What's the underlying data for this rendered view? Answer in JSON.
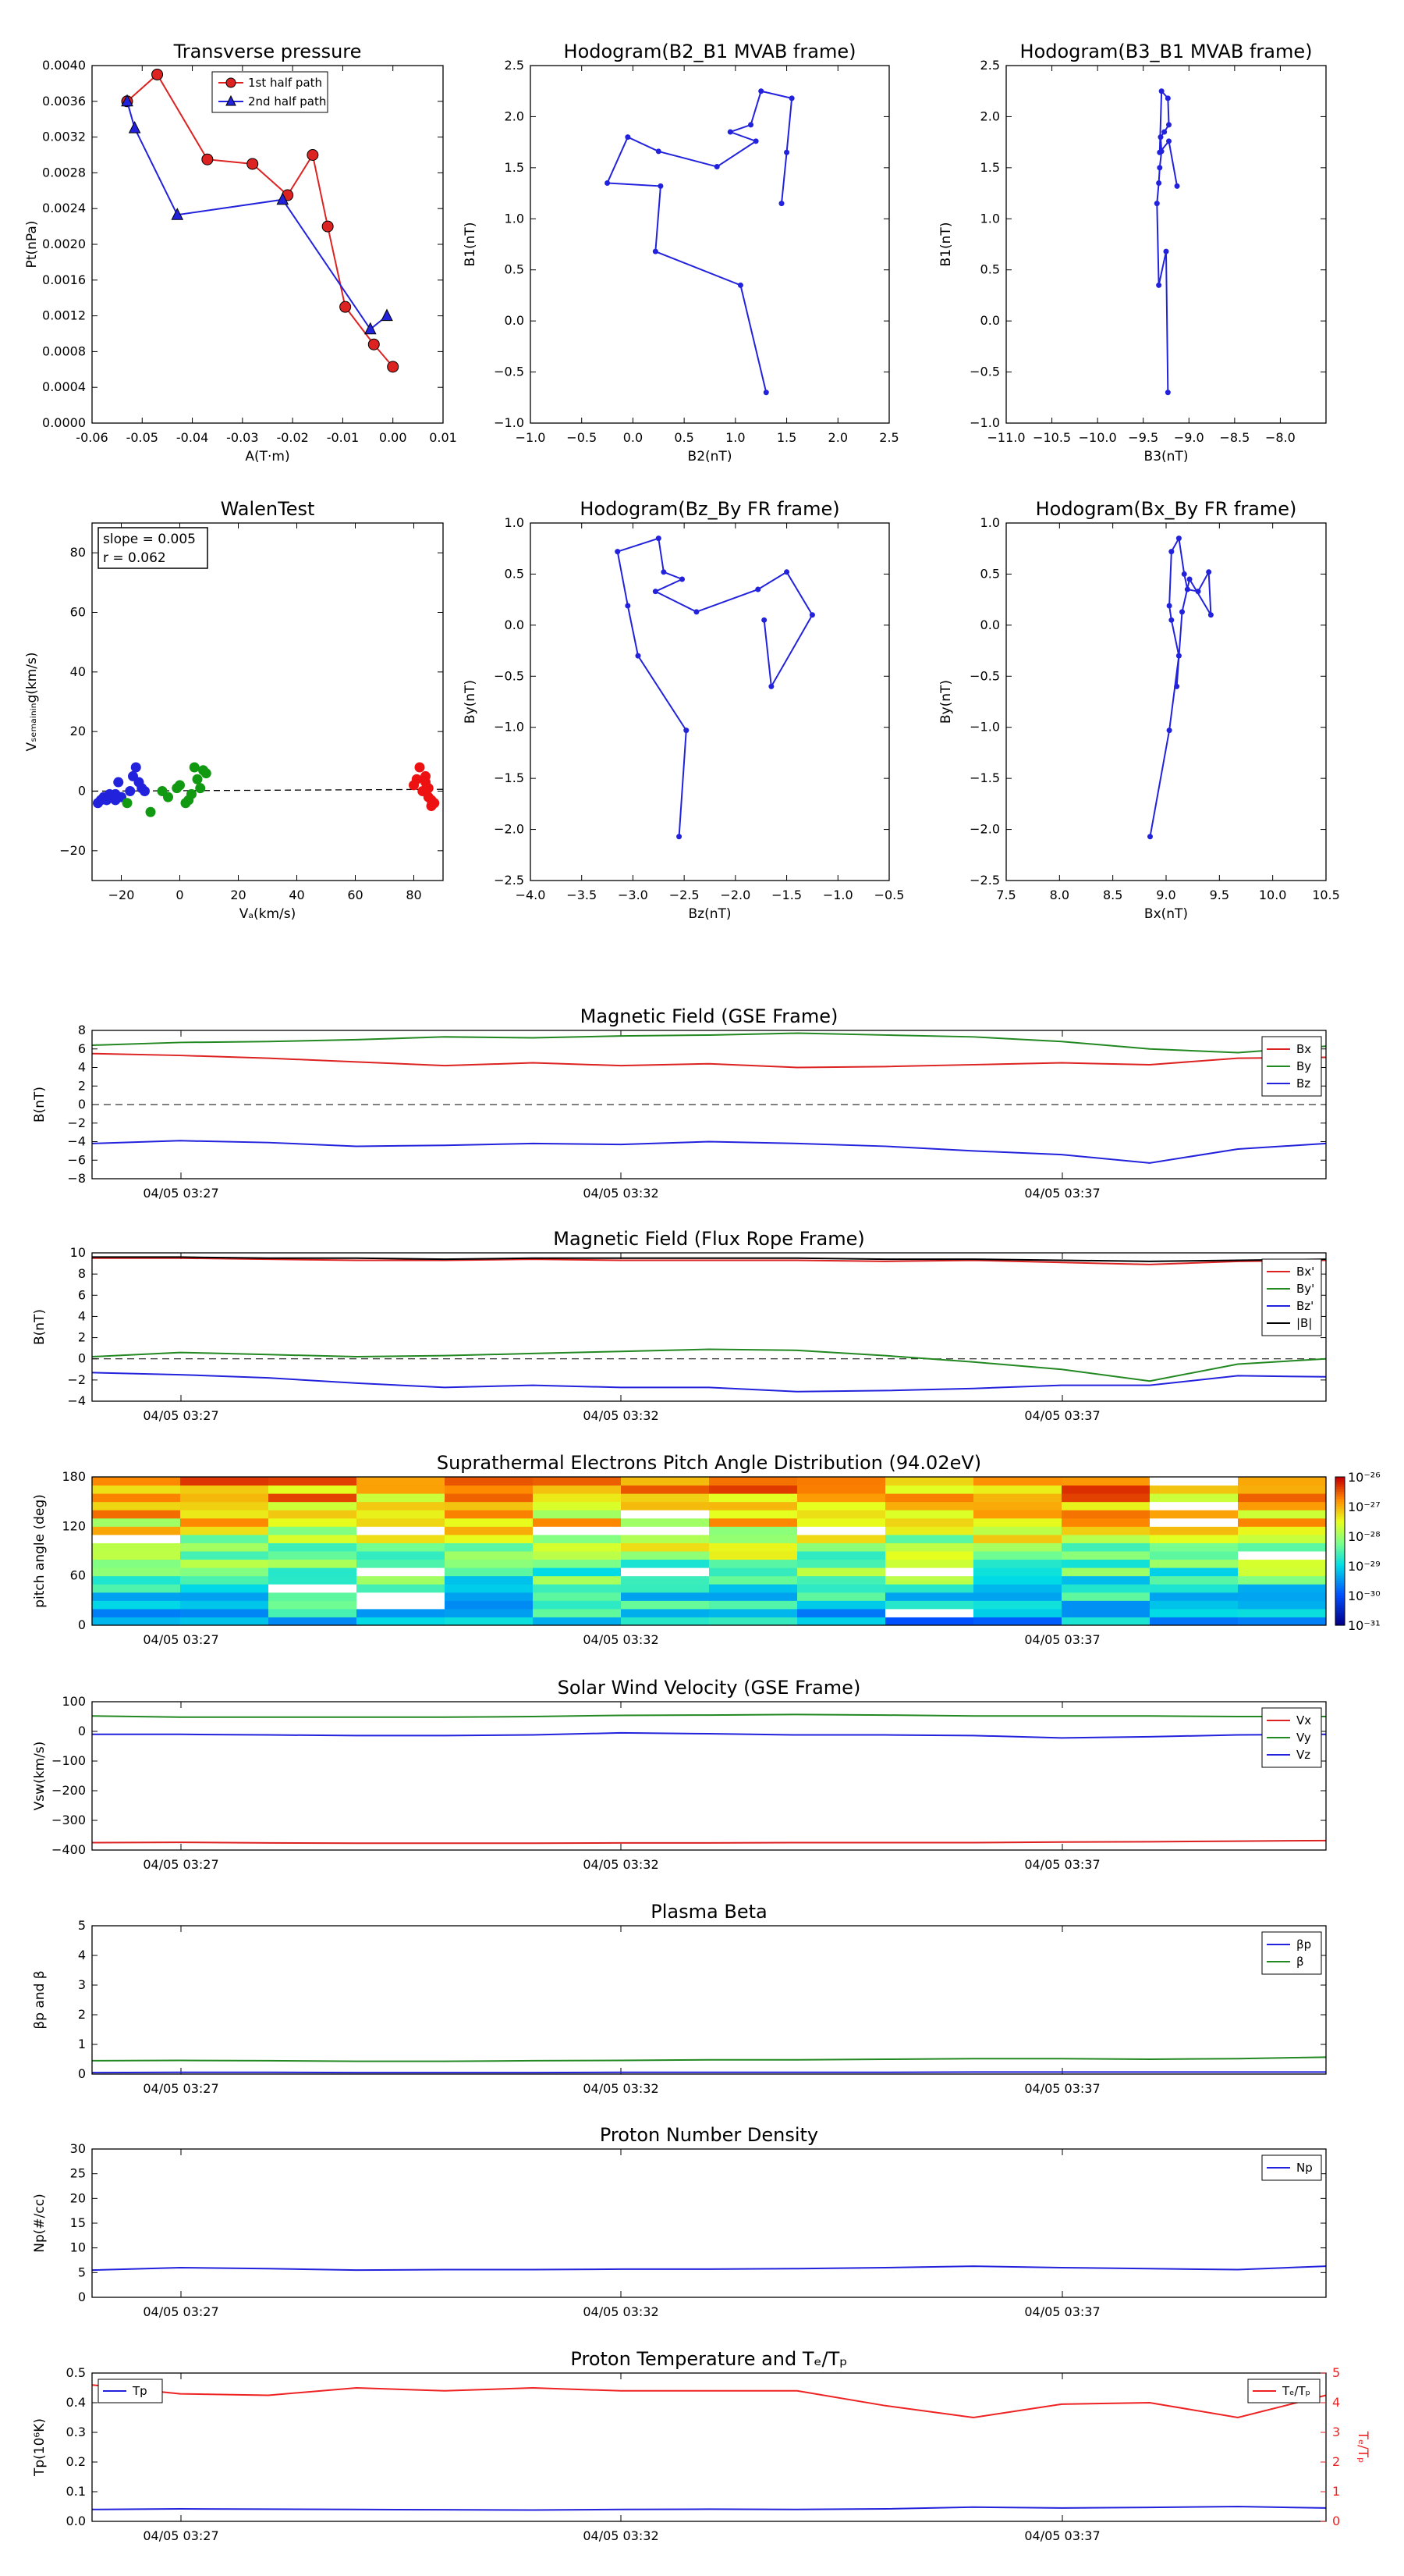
{
  "charts": [
    {
      "id": "pt",
      "type": "line",
      "title": "Transverse pressure",
      "xlabel": "A(T·m)",
      "ylabel": "Pt(nPa)",
      "xlim": [
        -0.06,
        0.01
      ],
      "ylim": [
        0,
        0.004
      ],
      "xticks": [
        "-0.06",
        "-0.05",
        "-0.04",
        "-0.03",
        "-0.02",
        "-0.01",
        "0.00",
        "0.01"
      ],
      "yticks": [
        "0.0000",
        "0.0004",
        "0.0008",
        "0.0012",
        "0.0016",
        "0.0020",
        "0.0024",
        "0.0028",
        "0.0032",
        "0.0036",
        "0.0040"
      ],
      "legend": [
        "1st half path",
        "2nd half path"
      ],
      "series": [
        {
          "name": "1st half path",
          "color": "#dd2222",
          "marker": "circle",
          "x": [
            -0.053,
            -0.047,
            -0.037,
            -0.028,
            -0.021,
            -0.016,
            -0.013,
            -0.0095,
            -0.0038,
            0.0
          ],
          "y": [
            0.0036,
            0.0039,
            0.00295,
            0.0029,
            0.00255,
            0.003,
            0.0022,
            0.0013,
            0.00088,
            0.00063
          ]
        },
        {
          "name": "2nd half path",
          "color": "#2222dd",
          "marker": "triangle",
          "x": [
            -0.053,
            -0.0515,
            -0.043,
            -0.022,
            -0.0045,
            -0.0012
          ],
          "y": [
            0.0036,
            0.0033,
            0.00233,
            0.0025,
            0.00105,
            0.0012
          ]
        }
      ]
    },
    {
      "id": "h1",
      "type": "line",
      "title": "Hodogram(B2_B1 MVAB frame)",
      "xlabel": "B2(nT)",
      "ylabel": "B1(nT)",
      "xlim": [
        -1.0,
        2.5
      ],
      "ylim": [
        -1.0,
        2.5
      ],
      "xticks": [
        "−1.0",
        "−0.5",
        "0.0",
        "0.5",
        "1.0",
        "1.5",
        "2.0",
        "2.5"
      ],
      "yticks": [
        "−1.0",
        "−0.5",
        "0.0",
        "0.5",
        "1.0",
        "1.5",
        "2.0",
        "2.5"
      ],
      "series": [
        {
          "color": "#2222dd",
          "marker": "dot",
          "x": [
            1.3,
            1.05,
            0.22,
            0.27,
            -0.25,
            -0.05,
            0.25,
            0.82,
            1.2,
            0.95,
            1.15,
            1.25,
            1.55,
            1.5,
            1.45
          ],
          "y": [
            -0.7,
            0.35,
            0.68,
            1.32,
            1.35,
            1.8,
            1.66,
            1.51,
            1.76,
            1.85,
            1.92,
            2.25,
            2.18,
            1.65,
            1.15
          ]
        }
      ]
    },
    {
      "id": "h2",
      "type": "line",
      "title": "Hodogram(B3_B1 MVAB frame)",
      "xlabel": "B3(nT)",
      "ylabel": "B1(nT)",
      "xlim": [
        -11.0,
        -7.5
      ],
      "ylim": [
        -1.0,
        2.5
      ],
      "xticks": [
        "−11.0",
        "−10.5",
        "−10.0",
        "−9.5",
        "−9.0",
        "−8.5",
        "−8.0"
      ],
      "yticks": [
        "−1.0",
        "−0.5",
        "0.0",
        "0.5",
        "1.0",
        "1.5",
        "2.0",
        "2.5"
      ],
      "series": [
        {
          "color": "#2222dd",
          "marker": "dot",
          "x": [
            -9.23,
            -9.25,
            -9.33,
            -9.35,
            -9.33,
            -9.32,
            -9.3,
            -9.31,
            -9.27,
            -9.22,
            -9.23,
            -9.3,
            -9.32,
            -9.22,
            -9.13
          ],
          "y": [
            -0.7,
            0.68,
            0.35,
            1.15,
            1.35,
            1.5,
            1.66,
            1.8,
            1.85,
            1.92,
            2.18,
            2.25,
            1.65,
            1.76,
            1.32
          ]
        }
      ]
    },
    {
      "id": "wt",
      "type": "scatter",
      "title": "WalenTest",
      "xlabel": "Vₐ(km/s)",
      "ylabel": "Vₛₑₘₐᵢₙᵢₙg(km/s)",
      "xlim": [
        -30,
        90
      ],
      "ylim": [
        -30,
        90
      ],
      "xticks": [
        "−20",
        "0",
        "20",
        "40",
        "60",
        "80"
      ],
      "yticks": [
        "−20",
        "0",
        "20",
        "40",
        "60",
        "80"
      ],
      "annotation": [
        "slope = 0.005",
        "r = 0.062"
      ],
      "series": [
        {
          "color": "#2222dd",
          "x": [
            -28,
            -27,
            -26,
            -25,
            -24,
            -23,
            -22,
            -21,
            -22,
            -20,
            -17,
            -16,
            -15,
            -14,
            -13,
            -12
          ],
          "y": [
            -4,
            -3,
            -2,
            -3,
            -1,
            -2,
            -3,
            3,
            -1,
            -2,
            0,
            5,
            8,
            3,
            1,
            0
          ]
        },
        {
          "color": "#119911",
          "x": [
            -18,
            -10,
            -6,
            -4,
            -1,
            0,
            2,
            3,
            4,
            5,
            6,
            7,
            8,
            9
          ],
          "y": [
            -4,
            -7,
            0,
            -2,
            1,
            2,
            -4,
            -3,
            -1,
            8,
            4,
            1,
            7,
            6
          ]
        },
        {
          "color": "#ee1111",
          "x": [
            80,
            81,
            82,
            83,
            84,
            85,
            86,
            87,
            84,
            85,
            86
          ],
          "y": [
            2,
            4,
            8,
            0,
            3,
            -2,
            -5,
            -4,
            5,
            1,
            -3
          ]
        }
      ],
      "reference_line": {
        "x": [
          -30,
          90
        ],
        "y": [
          0,
          0.6
        ]
      }
    },
    {
      "id": "h3",
      "type": "line",
      "title": "Hodogram(Bz_By FR frame)",
      "xlabel": "Bz(nT)",
      "ylabel": "By(nT)",
      "xlim": [
        -4.0,
        -0.5
      ],
      "ylim": [
        -2.5,
        1.0
      ],
      "xticks": [
        "−4.0",
        "−3.5",
        "−3.0",
        "−2.5",
        "−2.0",
        "−1.5",
        "−1.0",
        "−0.5"
      ],
      "yticks": [
        "−2.5",
        "−2.0",
        "−1.5",
        "−1.0",
        "−0.5",
        "0.0",
        "0.5",
        "1.0"
      ],
      "series": [
        {
          "color": "#2222dd",
          "marker": "dot",
          "x": [
            -2.55,
            -2.48,
            -2.95,
            -3.05,
            -3.15,
            -2.75,
            -2.7,
            -2.52,
            -2.78,
            -2.38,
            -1.78,
            -1.5,
            -1.25,
            -1.65,
            -1.72
          ],
          "y": [
            -2.07,
            -1.03,
            -0.3,
            0.19,
            0.72,
            0.85,
            0.52,
            0.45,
            0.33,
            0.13,
            0.35,
            0.52,
            0.1,
            -0.6,
            0.05
          ]
        }
      ]
    },
    {
      "id": "h4",
      "type": "line",
      "title": "Hodogram(Bx_By FR frame)",
      "xlabel": "Bx(nT)",
      "ylabel": "By(nT)",
      "xlim": [
        7.5,
        10.5
      ],
      "ylim": [
        -2.5,
        1.0
      ],
      "xticks": [
        "7.5",
        "8.0",
        "8.5",
        "9.0",
        "9.5",
        "10.0",
        "10.5"
      ],
      "yticks": [
        "−2.5",
        "−2.0",
        "−1.5",
        "−1.0",
        "−0.5",
        "0.0",
        "0.5",
        "1.0"
      ],
      "series": [
        {
          "color": "#2222dd",
          "marker": "dot",
          "x": [
            8.85,
            9.03,
            9.12,
            9.05,
            9.03,
            9.05,
            9.12,
            9.17,
            9.2,
            9.3,
            9.4,
            9.42,
            9.22,
            9.15,
            9.1
          ],
          "y": [
            -2.07,
            -1.03,
            -0.3,
            0.05,
            0.19,
            0.72,
            0.85,
            0.5,
            0.35,
            0.33,
            0.52,
            0.1,
            0.45,
            0.13,
            -0.6
          ]
        }
      ]
    }
  ],
  "timeseries": [
    {
      "id": "mf",
      "title": "Magnetic Field (GSE Frame)",
      "ylabel": "B(nT)",
      "ylim": [
        -8,
        8
      ],
      "yticks": [
        "−8",
        "−6",
        "−4",
        "−2",
        "0",
        "2",
        "4",
        "6",
        "8"
      ],
      "xticks": [
        "04/05 03:27",
        "04/05 03:32",
        "04/05 03:37"
      ],
      "dashed_zero": true,
      "series": [
        {
          "name": "Bx",
          "color": "#dd2222",
          "y": [
            5.5,
            5.3,
            5.0,
            4.6,
            4.2,
            4.5,
            4.2,
            4.4,
            4.0,
            4.1,
            4.3,
            4.5,
            4.3,
            5.0,
            5.1
          ]
        },
        {
          "name": "By",
          "color": "#228822",
          "y": [
            6.4,
            6.7,
            6.8,
            7.0,
            7.3,
            7.2,
            7.4,
            7.5,
            7.7,
            7.5,
            7.3,
            6.8,
            6.0,
            5.6,
            6.3
          ]
        },
        {
          "name": "Bz",
          "color": "#2222dd",
          "y": [
            -4.2,
            -3.9,
            -4.1,
            -4.5,
            -4.4,
            -4.2,
            -4.3,
            -4.0,
            -4.2,
            -4.5,
            -5.0,
            -5.4,
            -6.3,
            -4.8,
            -4.2
          ]
        }
      ]
    },
    {
      "id": "mfr",
      "title": "Magnetic Field (Flux Rope Frame)",
      "ylabel": "B(nT)",
      "ylim": [
        -4,
        10
      ],
      "yticks": [
        "−4",
        "−2",
        "0",
        "2",
        "4",
        "6",
        "8",
        "10"
      ],
      "xticks": [
        "04/05 03:27",
        "04/05 03:32",
        "04/05 03:37"
      ],
      "dashed_zero": true,
      "series": [
        {
          "name": "Bx'",
          "color": "#dd2222",
          "y": [
            9.5,
            9.5,
            9.4,
            9.3,
            9.3,
            9.4,
            9.3,
            9.3,
            9.3,
            9.2,
            9.3,
            9.1,
            8.9,
            9.2,
            9.3
          ]
        },
        {
          "name": "By'",
          "color": "#228822",
          "y": [
            0.2,
            0.6,
            0.4,
            0.2,
            0.3,
            0.5,
            0.7,
            0.9,
            0.8,
            0.3,
            -0.3,
            -1.0,
            -2.1,
            -0.5,
            0.0
          ]
        },
        {
          "name": "Bz'",
          "color": "#2222dd",
          "y": [
            -1.3,
            -1.5,
            -1.8,
            -2.3,
            -2.7,
            -2.5,
            -2.7,
            -2.7,
            -3.1,
            -3.0,
            -2.8,
            -2.5,
            -2.5,
            -1.6,
            -1.7
          ]
        },
        {
          "name": "|B|",
          "color": "#000000",
          "y": [
            9.6,
            9.6,
            9.5,
            9.5,
            9.4,
            9.5,
            9.5,
            9.5,
            9.5,
            9.4,
            9.4,
            9.3,
            9.2,
            9.3,
            9.4
          ]
        }
      ]
    },
    {
      "id": "pad",
      "title": "Suprathermal Electrons Pitch Angle Distribution (94.02eV)",
      "ylabel": "pitch angle (deg)",
      "ylim": [
        0,
        180
      ],
      "yticks": [
        "0",
        "60",
        "120",
        "180"
      ],
      "xticks": [
        "04/05 03:27",
        "04/05 03:32",
        "04/05 03:37"
      ],
      "colorbar": {
        "labels": [
          "10⁻²⁶",
          "10⁻²⁷",
          "10⁻²⁸",
          "10⁻²⁹",
          "10⁻³⁰",
          "10⁻³¹"
        ]
      }
    },
    {
      "id": "vsw",
      "title": "Solar Wind Velocity (GSE Frame)",
      "ylabel": "Vsw(km/s)",
      "ylim": [
        -400,
        100
      ],
      "yticks": [
        "−400",
        "−300",
        "−200",
        "−100",
        "0",
        "100"
      ],
      "xticks": [
        "04/05 03:27",
        "04/05 03:32",
        "04/05 03:37"
      ],
      "series": [
        {
          "name": "Vx",
          "color": "#dd2222",
          "y": [
            -375,
            -374,
            -376,
            -377,
            -377,
            -377,
            -376,
            -376,
            -375,
            -375,
            -375,
            -373,
            -372,
            -370,
            -368
          ]
        },
        {
          "name": "Vy",
          "color": "#228822",
          "y": [
            52,
            48,
            48,
            48,
            48,
            50,
            54,
            55,
            57,
            55,
            52,
            52,
            52,
            50,
            50
          ]
        },
        {
          "name": "Vz",
          "color": "#2222dd",
          "y": [
            -10,
            -10,
            -12,
            -14,
            -14,
            -12,
            -5,
            -8,
            -12,
            -12,
            -14,
            -22,
            -18,
            -12,
            -10
          ]
        }
      ]
    },
    {
      "id": "beta",
      "title": "Plasma Beta",
      "ylabel": "βp and β",
      "ylim": [
        0,
        5
      ],
      "yticks": [
        "0",
        "1",
        "2",
        "3",
        "4",
        "5"
      ],
      "xticks": [
        "04/05 03:27",
        "04/05 03:32",
        "04/05 03:37"
      ],
      "series": [
        {
          "name": "βp",
          "color": "#2222dd",
          "y": [
            0.05,
            0.06,
            0.06,
            0.05,
            0.05,
            0.05,
            0.06,
            0.06,
            0.06,
            0.06,
            0.07,
            0.07,
            0.07,
            0.07,
            0.07
          ]
        },
        {
          "name": "β",
          "color": "#228822",
          "y": [
            0.45,
            0.46,
            0.45,
            0.43,
            0.43,
            0.45,
            0.46,
            0.48,
            0.48,
            0.5,
            0.52,
            0.52,
            0.5,
            0.52,
            0.57
          ]
        }
      ]
    },
    {
      "id": "np",
      "title": "Proton Number Density",
      "ylabel": "Np(#/cc)",
      "ylim": [
        0,
        30
      ],
      "yticks": [
        "0",
        "5",
        "10",
        "15",
        "20",
        "25",
        "30"
      ],
      "xticks": [
        "04/05 03:27",
        "04/05 03:32",
        "04/05 03:37"
      ],
      "series": [
        {
          "name": "Np",
          "color": "#2222dd",
          "y": [
            5.5,
            6.0,
            5.8,
            5.5,
            5.6,
            5.6,
            5.7,
            5.7,
            5.8,
            6.0,
            6.3,
            6.0,
            5.8,
            5.6,
            6.3
          ]
        }
      ]
    },
    {
      "id": "tp",
      "title": "Proton Temperature and Tₑ/Tₚ",
      "ylabel": "Tp(10⁶K)",
      "ylim": [
        0,
        0.5
      ],
      "yticks": [
        "0.0",
        "0.1",
        "0.2",
        "0.3",
        "0.4",
        "0.5"
      ],
      "ylim2": [
        0,
        5
      ],
      "yticks2": [
        "0",
        "1",
        "2",
        "3",
        "4",
        "5"
      ],
      "ylabel2": "Tₑ/Tₚ",
      "xticks": [
        "04/05 03:27",
        "04/05 03:32",
        "04/05 03:37"
      ],
      "series": [
        {
          "name": "Tp",
          "color": "#2222dd",
          "y": [
            0.04,
            0.042,
            0.041,
            0.04,
            0.039,
            0.038,
            0.04,
            0.041,
            0.04,
            0.042,
            0.048,
            0.045,
            0.047,
            0.05,
            0.045
          ]
        },
        {
          "name": "Tₑ/Tₚ",
          "color": "#ee2222",
          "axis": 2,
          "y": [
            4.6,
            4.3,
            4.25,
            4.5,
            4.4,
            4.5,
            4.4,
            4.4,
            4.4,
            3.9,
            3.5,
            3.95,
            4.0,
            3.5,
            4.25
          ]
        }
      ]
    }
  ]
}
